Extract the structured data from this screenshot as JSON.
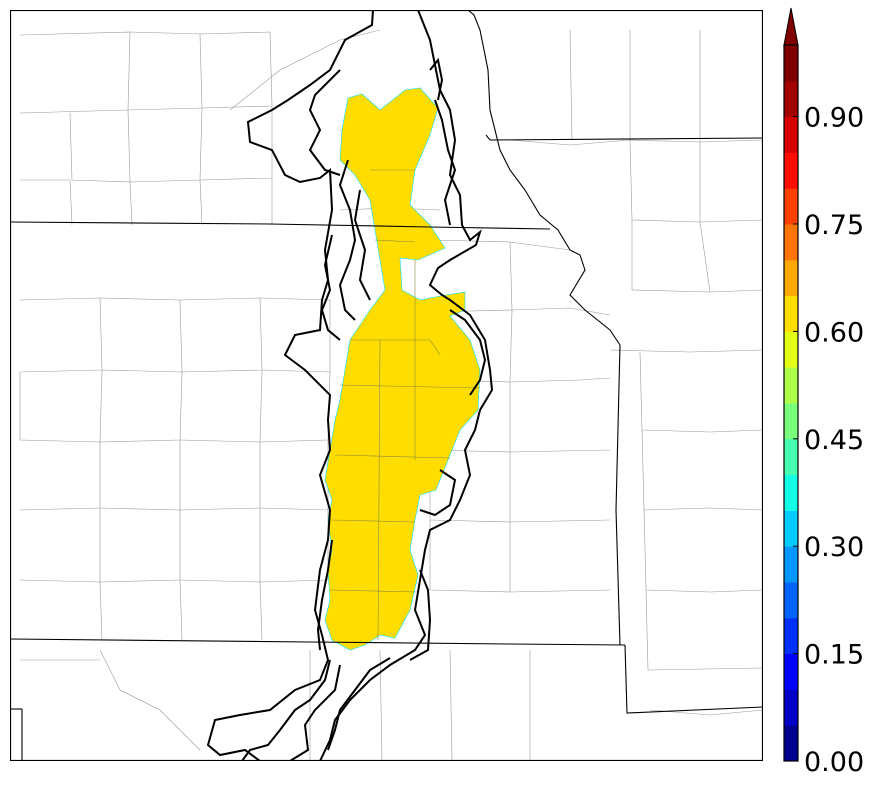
{
  "map": {
    "shaded_field_color": "#ffdd00",
    "contour_color": "#000000",
    "boundary_color": "#000000",
    "county_line_color": "#9a9a9a"
  },
  "colorbar": {
    "ticks": [
      {
        "label": "0.00",
        "value": 0.0
      },
      {
        "label": "0.15",
        "value": 0.15
      },
      {
        "label": "0.30",
        "value": 0.3
      },
      {
        "label": "0.45",
        "value": 0.45
      },
      {
        "label": "0.60",
        "value": 0.6
      },
      {
        "label": "0.75",
        "value": 0.75
      },
      {
        "label": "0.90",
        "value": 0.9
      }
    ],
    "range": [
      0.0,
      1.0
    ],
    "extend": "max",
    "colors": [
      "#00008f",
      "#0000c8",
      "#0000ff",
      "#0030ff",
      "#0064ff",
      "#0098ff",
      "#00ccff",
      "#12ffe5",
      "#46ffb1",
      "#7aff7d",
      "#aeff49",
      "#e2ff15",
      "#ffdd00",
      "#ffa800",
      "#ff7400",
      "#ff4000",
      "#ff0c00",
      "#d60000",
      "#a30000",
      "#800000"
    ]
  }
}
